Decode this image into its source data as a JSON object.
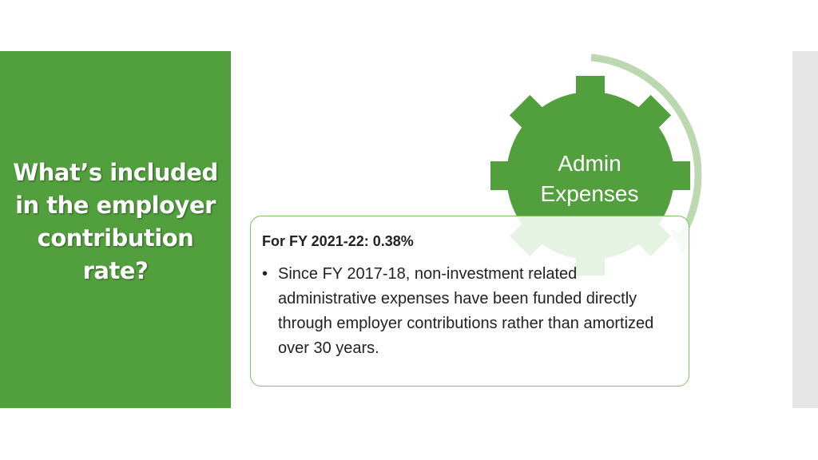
{
  "slide": {
    "title": "What’s included in the employer contribution rate?"
  },
  "gear": {
    "line1": "Admin",
    "line2": "Expenses"
  },
  "info_box": {
    "heading": "For FY 2021-22:  0.38%",
    "bullet": "Since FY 2017-18, non-investment related administrative expenses have been funded directly through employer contributions rather than amortized over 30 years."
  },
  "colors": {
    "green": "#52a03d",
    "arrow": "#bcd8b1",
    "box_border": "#7fbe6a",
    "side_strip": "#e6e6e6"
  },
  "icons": {
    "gear": "gear-icon",
    "arrow": "circular-arrow-icon",
    "bullet": "bullet-dot-icon"
  }
}
